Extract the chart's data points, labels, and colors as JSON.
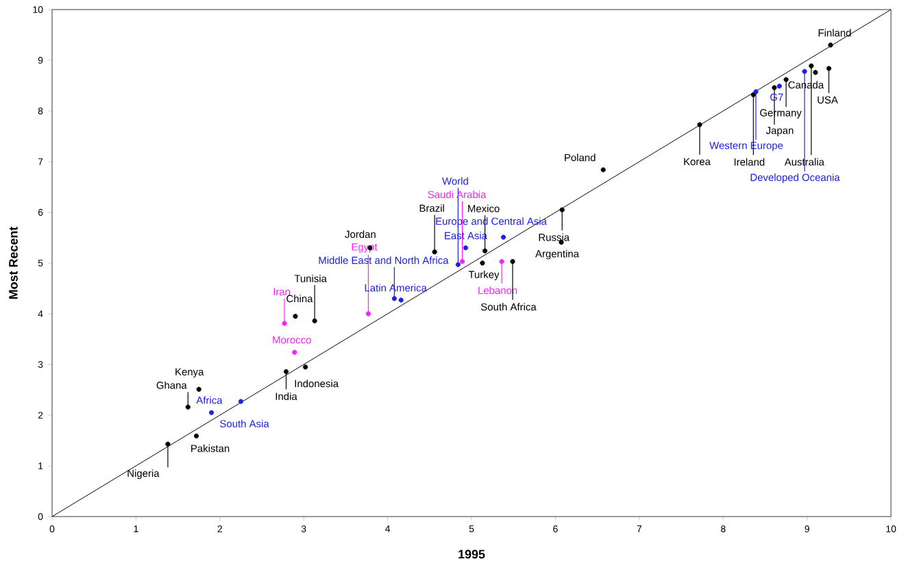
{
  "chart_data": {
    "type": "scatter",
    "xlabel": "1995",
    "ylabel": "Most Recent",
    "xlim": [
      0,
      10
    ],
    "ylim": [
      0,
      10
    ],
    "xticks": [
      0,
      1,
      2,
      3,
      4,
      5,
      6,
      7,
      8,
      9,
      10
    ],
    "yticks": [
      0,
      1,
      2,
      3,
      4,
      5,
      6,
      7,
      8,
      9,
      10
    ],
    "series": [
      {
        "marker": "circle",
        "color": "#000000",
        "x": [
          1.38,
          1.72,
          1.62,
          1.75,
          2.79,
          3.02,
          2.9,
          3.13,
          3.79,
          4.56,
          5.16,
          5.13,
          5.49,
          6.08,
          6.07,
          6.57,
          7.72,
          8.36,
          8.61,
          8.75,
          9.05,
          9.1,
          9.26,
          9.28
        ],
        "values": [
          1.43,
          1.59,
          2.16,
          2.51,
          2.86,
          2.95,
          3.95,
          3.86,
          5.3,
          5.22,
          5.24,
          5.0,
          5.03,
          6.05,
          5.41,
          6.84,
          7.73,
          8.32,
          8.46,
          8.62,
          8.89,
          8.76,
          8.84,
          9.3
        ]
      },
      {
        "marker": "circle",
        "color": "#2020e0",
        "x": [
          2.25,
          1.9,
          4.08,
          4.16,
          4.84,
          4.93,
          5.38,
          8.39,
          8.67,
          8.97
        ],
        "values": [
          2.27,
          2.05,
          4.3,
          4.27,
          4.97,
          5.3,
          5.51,
          8.38,
          8.49,
          8.78
        ]
      },
      {
        "marker": "circle",
        "color": "#ff20ff",
        "x": [
          2.89,
          2.77,
          3.77,
          4.89,
          5.36
        ],
        "values": [
          3.24,
          3.81,
          4.0,
          5.03,
          5.03
        ]
      },
      {
        "type": "line",
        "marker": "none",
        "color": "#000000",
        "x": [
          0,
          10
        ],
        "values": [
          0,
          10
        ]
      }
    ],
    "annotations": [
      {
        "text": "Nigeria",
        "x": 1.38,
        "y": 1.43
      },
      {
        "text": "Pakistan",
        "x": 1.72,
        "y": 1.59
      },
      {
        "text": "Ghana",
        "x": 1.62,
        "y": 2.16
      },
      {
        "text": "Kenya",
        "x": 1.75,
        "y": 2.51
      },
      {
        "text": "Africa",
        "x": 2.25,
        "y": 2.27
      },
      {
        "text": "South Asia",
        "x": 1.9,
        "y": 2.05
      },
      {
        "text": "India",
        "x": 2.79,
        "y": 2.86
      },
      {
        "text": "Indonesia",
        "x": 3.02,
        "y": 2.95
      },
      {
        "text": "Morocco",
        "x": 2.89,
        "y": 3.24
      },
      {
        "text": "Iran",
        "x": 2.77,
        "y": 3.81
      },
      {
        "text": "China",
        "x": 2.9,
        "y": 3.95
      },
      {
        "text": "Tunisia",
        "x": 3.13,
        "y": 3.86
      },
      {
        "text": "Egypt",
        "x": 3.77,
        "y": 4.0
      },
      {
        "text": "Jordan",
        "x": 3.79,
        "y": 5.3
      },
      {
        "text": "Middle East and North Africa",
        "x": 4.08,
        "y": 4.3
      },
      {
        "text": "Latin America",
        "x": 4.16,
        "y": 4.27
      },
      {
        "text": "Brazil",
        "x": 4.56,
        "y": 5.22
      },
      {
        "text": "World",
        "x": 4.84,
        "y": 4.97
      },
      {
        "text": "Saudi Arabia",
        "x": 4.89,
        "y": 5.03
      },
      {
        "text": "East Asia",
        "x": 4.93,
        "y": 5.3
      },
      {
        "text": "Europe and Central Asia",
        "x": 5.38,
        "y": 5.51
      },
      {
        "text": "Mexico",
        "x": 5.16,
        "y": 5.24
      },
      {
        "text": "Turkey",
        "x": 5.13,
        "y": 5.0
      },
      {
        "text": "Lebanon",
        "x": 5.36,
        "y": 5.03
      },
      {
        "text": "South Africa",
        "x": 5.49,
        "y": 5.03
      },
      {
        "text": "Russia",
        "x": 6.08,
        "y": 6.05
      },
      {
        "text": "Argentina",
        "x": 6.07,
        "y": 5.41
      },
      {
        "text": "Poland",
        "x": 6.57,
        "y": 6.84
      },
      {
        "text": "Korea",
        "x": 7.72,
        "y": 7.73
      },
      {
        "text": "Western Europe",
        "x": 8.39,
        "y": 8.38
      },
      {
        "text": "Ireland",
        "x": 8.36,
        "y": 8.32
      },
      {
        "text": "Japan",
        "x": 8.61,
        "y": 8.46
      },
      {
        "text": "G7",
        "x": 8.67,
        "y": 8.49
      },
      {
        "text": "Germany",
        "x": 8.75,
        "y": 8.62
      },
      {
        "text": "Developed Oceania",
        "x": 8.97,
        "y": 8.78
      },
      {
        "text": "Australia",
        "x": 9.05,
        "y": 8.89
      },
      {
        "text": "Canada",
        "x": 9.1,
        "y": 8.76
      },
      {
        "text": "USA",
        "x": 9.26,
        "y": 8.84
      },
      {
        "text": "Finland",
        "x": 9.28,
        "y": 9.3
      }
    ]
  }
}
